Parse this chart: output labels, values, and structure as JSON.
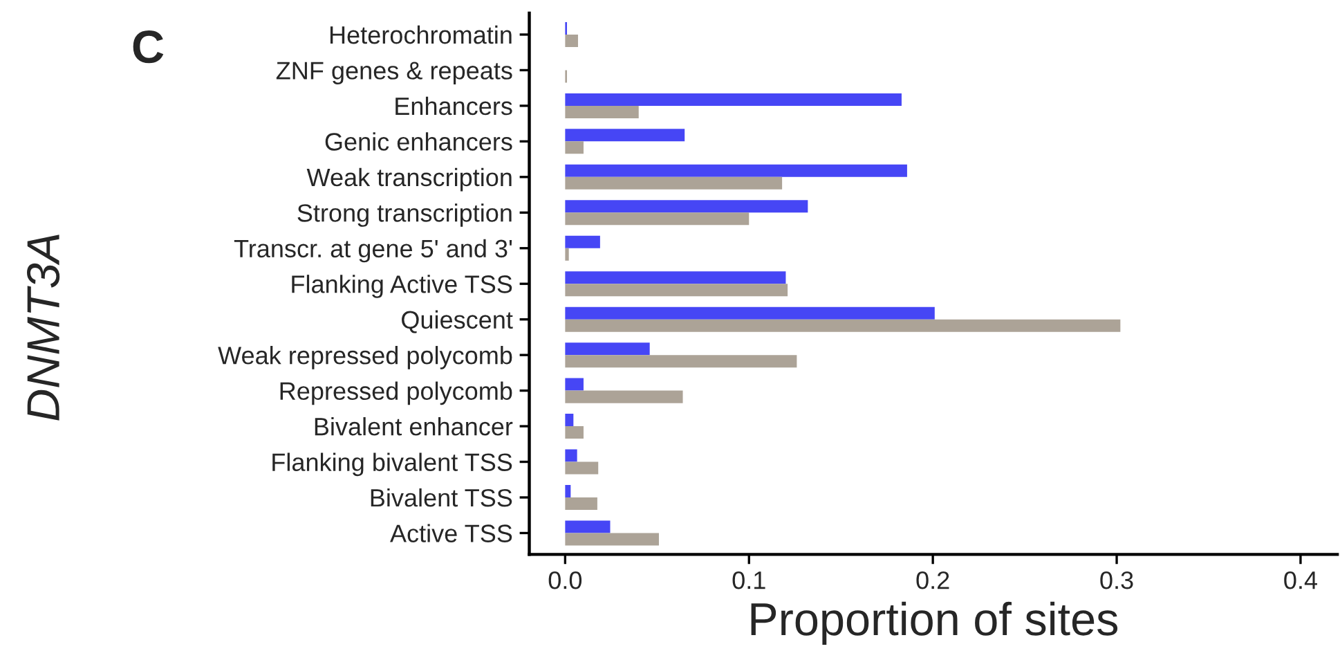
{
  "chart_data": {
    "type": "bar",
    "orientation": "horizontal",
    "ylabel": "DNMT3A",
    "xlabel": "Proportion of sites",
    "annotations": [
      "C"
    ],
    "categories": [
      "Heterochromatin",
      "ZNF genes & repeats",
      "Enhancers",
      "Genic enhancers",
      "Weak transcription",
      "Strong transcription",
      "Transcr. at gene 5' and 3'",
      "Flanking Active TSS",
      "Quiescent",
      "Weak repressed polycomb",
      "Repressed polycomb",
      "Bivalent enhancer",
      "Flanking bivalent TSS",
      "Bivalent TSS",
      "Active TSS"
    ],
    "series": [
      {
        "color": "#4646f5",
        "values": [
          0.001,
          null,
          0.183,
          0.065,
          0.186,
          0.132,
          0.019,
          0.12,
          0.201,
          0.046,
          0.01,
          0.0045,
          0.0065,
          0.003,
          0.0245
        ]
      },
      {
        "color": "#aca397",
        "values": [
          0.007,
          0.001,
          0.04,
          0.01,
          0.118,
          0.1,
          0.002,
          0.121,
          0.302,
          0.126,
          0.064,
          0.01,
          0.018,
          0.0175,
          0.051
        ]
      }
    ],
    "xlim": [
      -0.0195,
      0.42
    ],
    "xticks": [
      {
        "value": 0,
        "label": "0.0"
      },
      0.1,
      0.2,
      0.3,
      0.4
    ],
    "grid": false,
    "legend": false
  }
}
